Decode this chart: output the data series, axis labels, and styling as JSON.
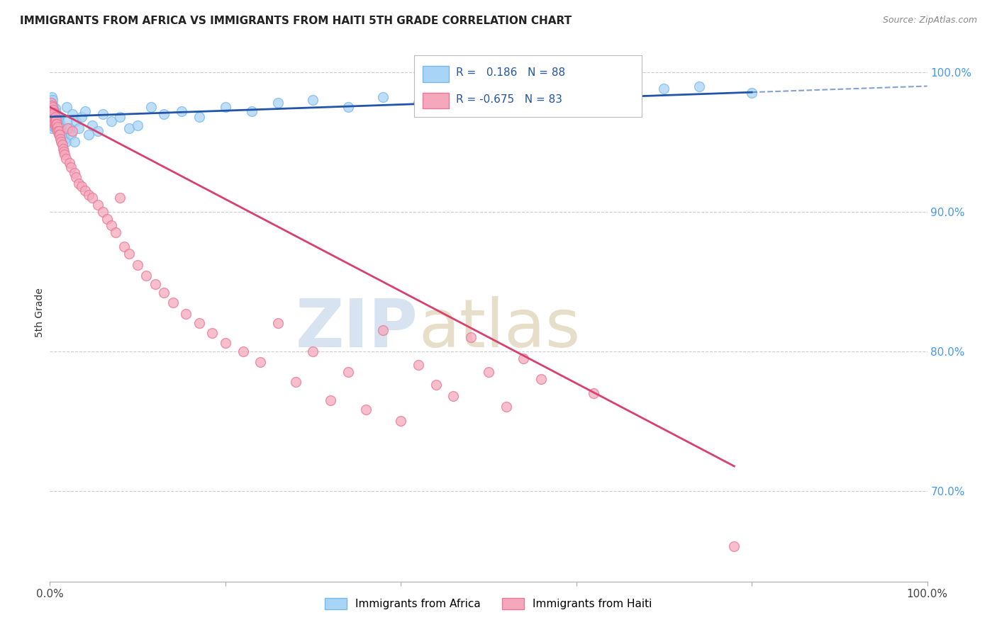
{
  "title": "IMMIGRANTS FROM AFRICA VS IMMIGRANTS FROM HAITI 5TH GRADE CORRELATION CHART",
  "source": "Source: ZipAtlas.com",
  "ylabel": "5th Grade",
  "R_africa": 0.186,
  "N_africa": 88,
  "R_haiti": -0.675,
  "N_haiti": 83,
  "africa_color": "#a8d4f5",
  "africa_edge_color": "#7ab8e8",
  "haiti_color": "#f5a8bc",
  "haiti_edge_color": "#e87898",
  "africa_line_color": "#2255aa",
  "haiti_line_color": "#d94070",
  "yaxis_color": "#4499ee",
  "xlim": [
    0.0,
    1.0
  ],
  "ylim": [
    0.635,
    1.02
  ],
  "yticks": [
    0.7,
    0.8,
    0.9,
    1.0
  ],
  "ytick_labels": [
    "70.0%",
    "80.0%",
    "90.0%",
    "100.0%"
  ],
  "africa_scatter_x": [
    0.001,
    0.001,
    0.001,
    0.002,
    0.002,
    0.002,
    0.002,
    0.002,
    0.003,
    0.003,
    0.003,
    0.003,
    0.003,
    0.004,
    0.004,
    0.004,
    0.004,
    0.005,
    0.005,
    0.005,
    0.005,
    0.006,
    0.006,
    0.006,
    0.006,
    0.007,
    0.007,
    0.007,
    0.007,
    0.008,
    0.008,
    0.008,
    0.009,
    0.009,
    0.009,
    0.01,
    0.01,
    0.01,
    0.011,
    0.011,
    0.012,
    0.012,
    0.013,
    0.013,
    0.014,
    0.014,
    0.015,
    0.016,
    0.017,
    0.018,
    0.019,
    0.02,
    0.022,
    0.024,
    0.026,
    0.028,
    0.03,
    0.033,
    0.036,
    0.04,
    0.044,
    0.048,
    0.055,
    0.06,
    0.07,
    0.08,
    0.09,
    0.1,
    0.115,
    0.13,
    0.15,
    0.17,
    0.2,
    0.23,
    0.26,
    0.3,
    0.34,
    0.38,
    0.42,
    0.46,
    0.5,
    0.54,
    0.58,
    0.62,
    0.66,
    0.7,
    0.74,
    0.8
  ],
  "africa_scatter_y": [
    0.978,
    0.972,
    0.968,
    0.975,
    0.97,
    0.965,
    0.96,
    0.982,
    0.977,
    0.972,
    0.968,
    0.964,
    0.98,
    0.975,
    0.97,
    0.966,
    0.962,
    0.973,
    0.969,
    0.965,
    0.961,
    0.974,
    0.97,
    0.966,
    0.963,
    0.971,
    0.968,
    0.964,
    0.96,
    0.969,
    0.965,
    0.962,
    0.968,
    0.964,
    0.961,
    0.966,
    0.963,
    0.96,
    0.964,
    0.961,
    0.962,
    0.959,
    0.96,
    0.957,
    0.958,
    0.955,
    0.956,
    0.954,
    0.952,
    0.95,
    0.975,
    0.965,
    0.96,
    0.955,
    0.97,
    0.95,
    0.965,
    0.96,
    0.968,
    0.972,
    0.955,
    0.962,
    0.958,
    0.97,
    0.965,
    0.968,
    0.96,
    0.962,
    0.975,
    0.97,
    0.972,
    0.968,
    0.975,
    0.972,
    0.978,
    0.98,
    0.975,
    0.982,
    0.978,
    0.972,
    0.98,
    0.976,
    0.984,
    0.978,
    0.982,
    0.988,
    0.99,
    0.985
  ],
  "haiti_scatter_x": [
    0.001,
    0.001,
    0.001,
    0.002,
    0.002,
    0.002,
    0.002,
    0.003,
    0.003,
    0.003,
    0.004,
    0.004,
    0.004,
    0.005,
    0.005,
    0.005,
    0.006,
    0.006,
    0.006,
    0.007,
    0.007,
    0.008,
    0.008,
    0.009,
    0.009,
    0.01,
    0.01,
    0.011,
    0.012,
    0.013,
    0.014,
    0.015,
    0.016,
    0.017,
    0.018,
    0.02,
    0.022,
    0.024,
    0.026,
    0.028,
    0.03,
    0.033,
    0.036,
    0.04,
    0.044,
    0.048,
    0.055,
    0.06,
    0.065,
    0.07,
    0.075,
    0.08,
    0.085,
    0.09,
    0.1,
    0.11,
    0.12,
    0.13,
    0.14,
    0.155,
    0.17,
    0.185,
    0.2,
    0.22,
    0.24,
    0.26,
    0.28,
    0.3,
    0.32,
    0.34,
    0.36,
    0.38,
    0.4,
    0.42,
    0.44,
    0.46,
    0.48,
    0.5,
    0.52,
    0.54,
    0.56,
    0.62,
    0.78
  ],
  "haiti_scatter_y": [
    0.978,
    0.974,
    0.97,
    0.976,
    0.972,
    0.968,
    0.964,
    0.975,
    0.971,
    0.967,
    0.973,
    0.969,
    0.965,
    0.971,
    0.967,
    0.964,
    0.968,
    0.965,
    0.962,
    0.966,
    0.963,
    0.963,
    0.96,
    0.961,
    0.958,
    0.958,
    0.955,
    0.955,
    0.952,
    0.95,
    0.948,
    0.945,
    0.943,
    0.941,
    0.938,
    0.96,
    0.935,
    0.932,
    0.958,
    0.928,
    0.925,
    0.92,
    0.918,
    0.915,
    0.912,
    0.91,
    0.905,
    0.9,
    0.895,
    0.89,
    0.885,
    0.91,
    0.875,
    0.87,
    0.862,
    0.854,
    0.848,
    0.842,
    0.835,
    0.827,
    0.82,
    0.813,
    0.806,
    0.8,
    0.792,
    0.82,
    0.778,
    0.8,
    0.765,
    0.785,
    0.758,
    0.815,
    0.75,
    0.79,
    0.776,
    0.768,
    0.81,
    0.785,
    0.76,
    0.795,
    0.78,
    0.77,
    0.66
  ]
}
